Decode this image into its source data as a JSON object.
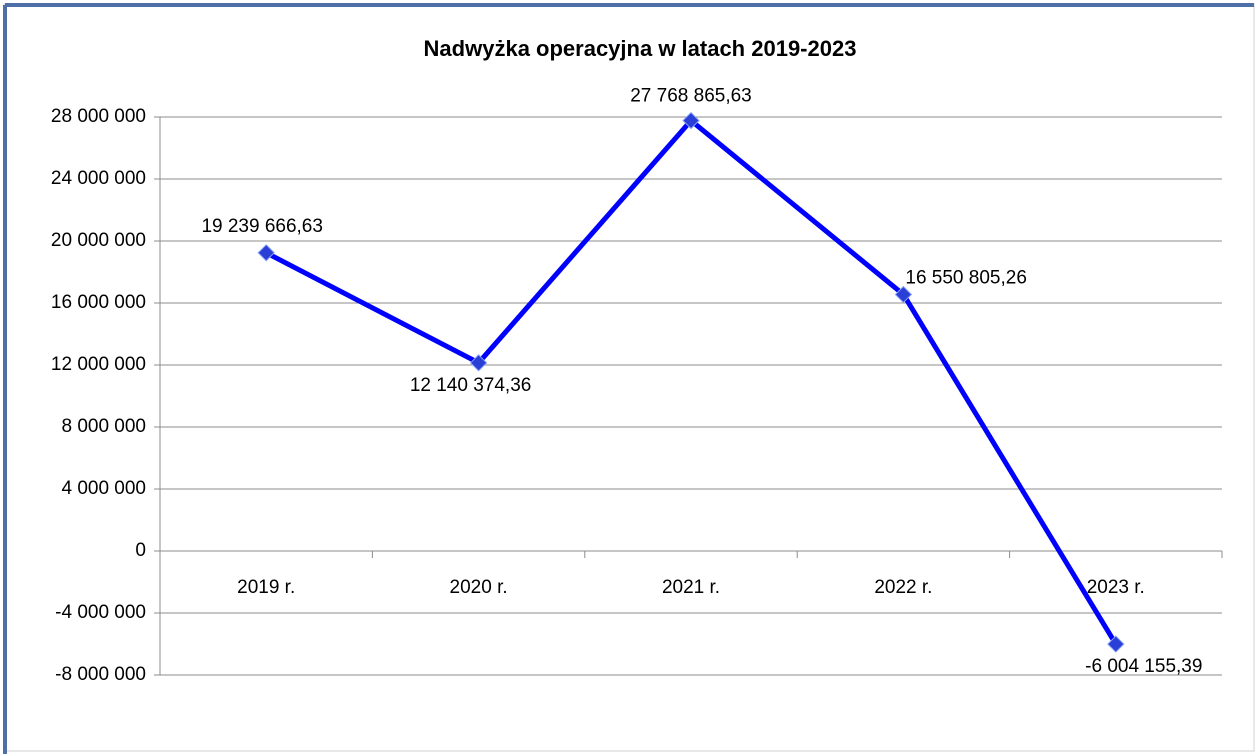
{
  "chart_data": {
    "type": "line",
    "title": "Nadwyżka operacyjna w latach 2019-2023",
    "categories": [
      "2019 r.",
      "2020 r.",
      "2021 r.",
      "2022 r.",
      "2023 r."
    ],
    "values": [
      19239666.63,
      12140374.36,
      27768865.63,
      16550805.26,
      -6004155.39
    ],
    "value_labels": [
      "19 239 666,63",
      "12 140 374,36",
      "27 768 865,63",
      "16 550 805,26",
      "-6 004 155,39"
    ],
    "color": "#0000ff",
    "marker_color": "#2a3fd6",
    "ylim": [
      -8000000,
      28000000
    ],
    "yticks": [
      {
        "value": -8000000,
        "label": "-8 000 000"
      },
      {
        "value": -4000000,
        "label": "-4 000 000"
      },
      0,
      {
        "value": 4000000,
        "label": "4 000 000"
      },
      {
        "value": 8000000,
        "label": "8 000 000"
      },
      {
        "value": 12000000,
        "label": "12 000 000"
      },
      {
        "value": 16000000,
        "label": "16 000 000"
      },
      {
        "value": 20000000,
        "label": "20 000 000"
      },
      {
        "value": 24000000,
        "label": "24 000 000"
      },
      {
        "value": 28000000,
        "label": "28 000 000"
      }
    ],
    "grid": true
  }
}
